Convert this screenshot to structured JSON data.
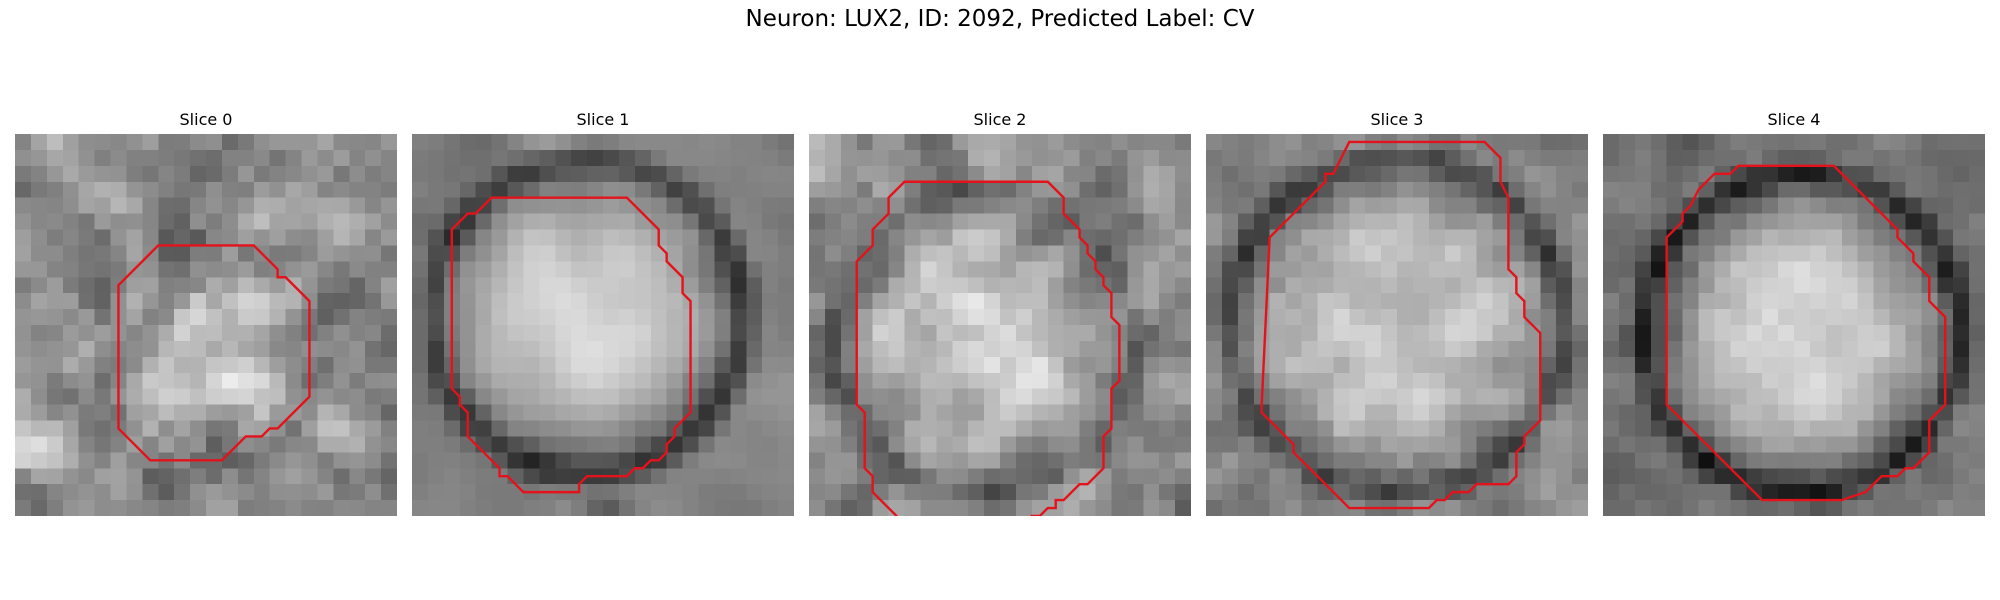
{
  "title": "Neuron: LUX2, ID: 2092, Predicted Label: CV",
  "colors": {
    "contour": "#e3121b"
  },
  "panels": [
    {
      "label": "Slice 0",
      "contour": [
        [
          13.5,
          7
        ],
        [
          15,
          7
        ],
        [
          16.5,
          8.5
        ],
        [
          16.5,
          9
        ],
        [
          17,
          9
        ],
        [
          18.5,
          10.5
        ],
        [
          18.5,
          16.5
        ],
        [
          16.5,
          18.5
        ],
        [
          16,
          18.5
        ],
        [
          15.5,
          19
        ],
        [
          14.5,
          19
        ],
        [
          13.5,
          20
        ],
        [
          13,
          20.5
        ],
        [
          8.5,
          20.5
        ],
        [
          7,
          19
        ],
        [
          6.5,
          18.5
        ],
        [
          6.5,
          9.5
        ],
        [
          8.5,
          7.5
        ],
        [
          9,
          7
        ]
      ],
      "rng": 11,
      "base": [
        0.55,
        0.6
      ],
      "disc": {
        "cx": 12.5,
        "cy": 13.5,
        "r": 6,
        "b": 0.22
      },
      "ring": {
        "r": 7.2,
        "w": 1.3,
        "d": -0.08
      },
      "corner": {
        "x": 1,
        "y": 19,
        "r": 4,
        "b": 0.18
      },
      "noise": 0.4,
      "smooth": 1
    },
    {
      "label": "Slice 1",
      "contour": [
        [
          5,
          4
        ],
        [
          13.5,
          4
        ],
        [
          15.5,
          6
        ],
        [
          15.5,
          7
        ],
        [
          16,
          7.5
        ],
        [
          16,
          8
        ],
        [
          17,
          9
        ],
        [
          17,
          10
        ],
        [
          17.5,
          10.5
        ],
        [
          17.5,
          17.5
        ],
        [
          16.5,
          18.5
        ],
        [
          16.5,
          19
        ],
        [
          16,
          19.5
        ],
        [
          16,
          20
        ],
        [
          15.5,
          20.5
        ],
        [
          15,
          20.5
        ],
        [
          14.5,
          21
        ],
        [
          14,
          21
        ],
        [
          13.5,
          21.5
        ],
        [
          11,
          21.5
        ],
        [
          10.5,
          22
        ],
        [
          10.5,
          22.5
        ],
        [
          7,
          22.5
        ],
        [
          6.5,
          22
        ],
        [
          6,
          21.5
        ],
        [
          5.5,
          21.5
        ],
        [
          5.5,
          21
        ],
        [
          4.5,
          20
        ],
        [
          4,
          19.5
        ],
        [
          3.5,
          19
        ],
        [
          3.5,
          17.5
        ],
        [
          3,
          17
        ],
        [
          3,
          16.5
        ],
        [
          2.5,
          16
        ],
        [
          2.5,
          6
        ],
        [
          3.5,
          5
        ],
        [
          4,
          5
        ],
        [
          4.5,
          4.5
        ]
      ],
      "rng": 23,
      "base": [
        0.5,
        0.5
      ],
      "disc": {
        "cx": 11,
        "cy": 11.5,
        "r": 8,
        "b": 0.32
      },
      "ring": {
        "r": 9.8,
        "w": 1.5,
        "d": -0.32
      },
      "corner": {
        "x": 12,
        "y": 25,
        "r": 2.5,
        "b": -0.35
      },
      "noise": 0.12,
      "smooth": 2
    },
    {
      "label": "Slice 2",
      "contour": [
        [
          6,
          3
        ],
        [
          15,
          3
        ],
        [
          16,
          4
        ],
        [
          16,
          5
        ],
        [
          17,
          6
        ],
        [
          17,
          6.5
        ],
        [
          17.5,
          7
        ],
        [
          17.5,
          7.5
        ],
        [
          18,
          8
        ],
        [
          18,
          8.5
        ],
        [
          18.5,
          9
        ],
        [
          18.5,
          9.5
        ],
        [
          19,
          10
        ],
        [
          19,
          11.5
        ],
        [
          19.5,
          12
        ],
        [
          19.5,
          15.5
        ],
        [
          19,
          16
        ],
        [
          19,
          18.5
        ],
        [
          18.5,
          19
        ],
        [
          18.5,
          21
        ],
        [
          17.5,
          22
        ],
        [
          17,
          22
        ],
        [
          16,
          23
        ],
        [
          15.5,
          23
        ],
        [
          15.5,
          23.5
        ],
        [
          15,
          23.5
        ],
        [
          14.5,
          24
        ],
        [
          14,
          24
        ],
        [
          14,
          24.5
        ],
        [
          13.5,
          25
        ],
        [
          12.5,
          25
        ],
        [
          11,
          25.5
        ],
        [
          7.5,
          25.5
        ],
        [
          5.5,
          24.5
        ],
        [
          5.5,
          24
        ],
        [
          4,
          22.5
        ],
        [
          4,
          21.5
        ],
        [
          3.5,
          21
        ],
        [
          3.5,
          17.5
        ],
        [
          3,
          17
        ],
        [
          3,
          8
        ],
        [
          3.5,
          7.5
        ],
        [
          4,
          7
        ],
        [
          4,
          6
        ],
        [
          4.5,
          5.5
        ],
        [
          5,
          5
        ],
        [
          5,
          4
        ]
      ],
      "rng": 37,
      "base": [
        0.55,
        0.55
      ],
      "disc": {
        "cx": 11,
        "cy": 13,
        "r": 8,
        "b": 0.25
      },
      "ring": {
        "r": 9.5,
        "w": 1.3,
        "d": -0.18
      },
      "corner": {
        "x": 0,
        "y": 0,
        "r": 0,
        "b": 0
      },
      "noise": 0.32,
      "smooth": 1
    },
    {
      "label": "Slice 3",
      "contour": [
        [
          9,
          0.5
        ],
        [
          17.5,
          0.5
        ],
        [
          18.5,
          1.5
        ],
        [
          18.5,
          3
        ],
        [
          19,
          4
        ],
        [
          19,
          8.5
        ],
        [
          19.5,
          9
        ],
        [
          19.5,
          10
        ],
        [
          20,
          10.5
        ],
        [
          20,
          11.5
        ],
        [
          21,
          12.5
        ],
        [
          21,
          18
        ],
        [
          20,
          19
        ],
        [
          20,
          19.5
        ],
        [
          19.5,
          20
        ],
        [
          19.5,
          21.5
        ],
        [
          19,
          22
        ],
        [
          17,
          22
        ],
        [
          16.5,
          22.5
        ],
        [
          15.5,
          22.5
        ],
        [
          15,
          23
        ],
        [
          14.5,
          23
        ],
        [
          14,
          23.5
        ],
        [
          9,
          23.5
        ],
        [
          8.5,
          23
        ],
        [
          8,
          22.5
        ],
        [
          7.5,
          22
        ],
        [
          7,
          21.5
        ],
        [
          6.5,
          21
        ],
        [
          6,
          20.5
        ],
        [
          5.5,
          20
        ],
        [
          5.5,
          19.5
        ],
        [
          4.5,
          18.5
        ],
        [
          4,
          18
        ],
        [
          3.5,
          17.5
        ],
        [
          3.5,
          17
        ],
        [
          4,
          6.5
        ],
        [
          5,
          5.5
        ],
        [
          5.5,
          5
        ],
        [
          6,
          4.5
        ],
        [
          6.5,
          4
        ],
        [
          7,
          3.5
        ],
        [
          7.5,
          3
        ],
        [
          7.5,
          2.5
        ],
        [
          8,
          2.5
        ],
        [
          8.5,
          1.5
        ]
      ],
      "rng": 53,
      "base": [
        0.52,
        0.5
      ],
      "disc": {
        "cx": 12,
        "cy": 12,
        "r": 9,
        "b": 0.27
      },
      "ring": {
        "r": 10.5,
        "w": 1.4,
        "d": -0.25
      },
      "corner": {
        "x": 0,
        "y": 0,
        "r": 0,
        "b": 0
      },
      "noise": 0.24,
      "smooth": 1
    },
    {
      "label": "Slice 4",
      "contour": [
        [
          9.5,
          2
        ],
        [
          14.5,
          2
        ],
        [
          16.5,
          4
        ],
        [
          17,
          4.5
        ],
        [
          17.5,
          5
        ],
        [
          18,
          5.5
        ],
        [
          18.5,
          6
        ],
        [
          18.5,
          6.5
        ],
        [
          19,
          7
        ],
        [
          19.5,
          7.5
        ],
        [
          19.5,
          8
        ],
        [
          20,
          8.5
        ],
        [
          20.5,
          9
        ],
        [
          20.5,
          10.5
        ],
        [
          21.5,
          11.5
        ],
        [
          21.5,
          17
        ],
        [
          20.5,
          18
        ],
        [
          20.5,
          20
        ],
        [
          19.5,
          21
        ],
        [
          19,
          21
        ],
        [
          18.5,
          21.5
        ],
        [
          17.5,
          21.5
        ],
        [
          17,
          22
        ],
        [
          16.5,
          22.5
        ],
        [
          15,
          23
        ],
        [
          10,
          23
        ],
        [
          8.5,
          21.5
        ],
        [
          7.5,
          20.5
        ],
        [
          6.5,
          19.5
        ],
        [
          5.5,
          18.5
        ],
        [
          4.5,
          17.5
        ],
        [
          4,
          17
        ],
        [
          4,
          6.5
        ],
        [
          5,
          5.5
        ],
        [
          5,
          5
        ],
        [
          5.5,
          4.5
        ],
        [
          6,
          3.5
        ],
        [
          6.5,
          3
        ],
        [
          7,
          2.5
        ],
        [
          8,
          2.5
        ],
        [
          8.5,
          2
        ]
      ],
      "rng": 71,
      "base": [
        0.45,
        0.45
      ],
      "disc": {
        "cx": 12.5,
        "cy": 12.5,
        "r": 8.5,
        "b": 0.38
      },
      "ring": {
        "r": 10,
        "w": 1.3,
        "d": -0.32
      },
      "corner": {
        "x": 0,
        "y": 0,
        "r": 0,
        "b": 0
      },
      "noise": 0.18,
      "smooth": 1
    }
  ]
}
